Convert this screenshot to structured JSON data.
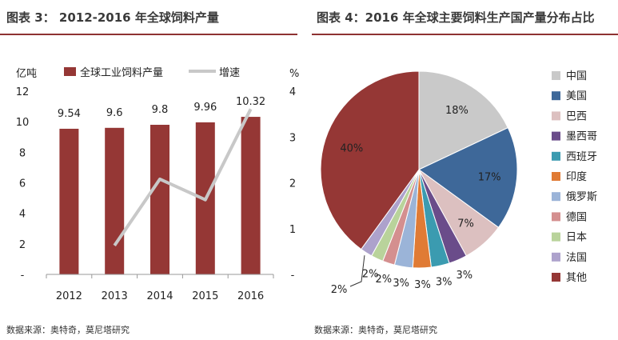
{
  "left": {
    "title": "图表 3： 2012-2016 年全球饲料产量",
    "source": "数据来源：奥特奇，莫尼塔研究"
  },
  "right": {
    "title": "图表 4：2016 年全球主要饲料生产国产量分布占比",
    "source": "数据来源：奥特奇，莫尼塔研究"
  },
  "colors": {
    "bar": "#953735",
    "line": "#c8c8c8",
    "title_rule": "#8e3232"
  },
  "chart_data": [
    {
      "type": "bar",
      "categories": [
        "2012",
        "2013",
        "2014",
        "2015",
        "2016"
      ],
      "series": [
        {
          "name": "全球工业饲料产量",
          "values": [
            9.54,
            9.6,
            9.8,
            9.96,
            10.32
          ],
          "axis": "left",
          "data_labels": [
            "9.54",
            "9.6",
            "9.8",
            "9.96",
            "10.32"
          ]
        },
        {
          "name": "增速",
          "type": "line",
          "values": [
            null,
            0.63,
            2.08,
            1.63,
            3.61
          ],
          "axis": "right"
        }
      ],
      "ylabel": "亿吨",
      "y2label": "%",
      "ylim": [
        0,
        12
      ],
      "y2lim": [
        0,
        4
      ],
      "yticks": [
        "-",
        "2",
        "4",
        "6",
        "8",
        "10",
        "12"
      ],
      "y2ticks": [
        "-",
        "1",
        "2",
        "3",
        "4"
      ],
      "legend": "top"
    },
    {
      "type": "pie",
      "labels": [
        "中国",
        "美国",
        "巴西",
        "墨西哥",
        "西班牙",
        "印度",
        "俄罗斯",
        "德国",
        "日本",
        "法国",
        "其他"
      ],
      "values": [
        18,
        17,
        7,
        3,
        3,
        3,
        3,
        2,
        2,
        2,
        40
      ],
      "value_labels": [
        "18%",
        "17%",
        "7%",
        "3%",
        "3%",
        "3%",
        "3%",
        "2%",
        "2%",
        "2%",
        "40%"
      ],
      "colors": [
        "#c9c9c9",
        "#3e6899",
        "#dcc0c0",
        "#6a4c8a",
        "#3b9bb0",
        "#e07b35",
        "#9bb4d8",
        "#d48f8f",
        "#b9d39b",
        "#ada2cc",
        "#953735"
      ],
      "legend": "right"
    }
  ]
}
